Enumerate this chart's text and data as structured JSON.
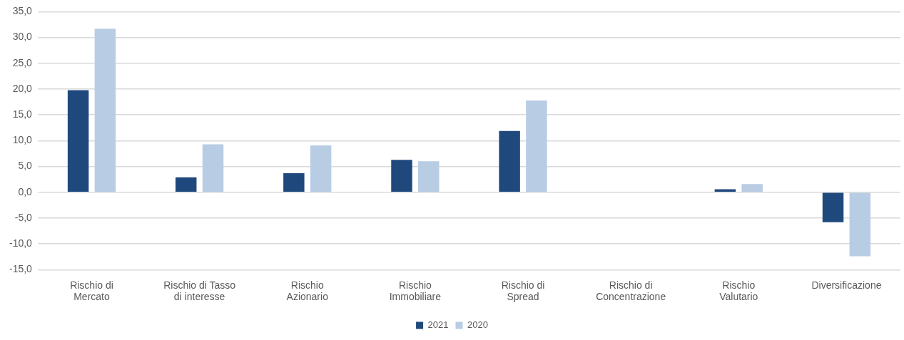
{
  "chart_data": {
    "type": "bar",
    "categories": [
      "Rischio di Mercato",
      "Rischio di Tasso di interesse",
      "Rischio Azionario",
      "Rischio Immobiliare",
      "Rischio di Spread",
      "Rischio di Concentrazione",
      "Rischio Valutario",
      "Diversificazione"
    ],
    "series": [
      {
        "name": "2021",
        "color": "#1f497d",
        "values": [
          19.8,
          2.9,
          3.7,
          6.3,
          11.9,
          0,
          0.6,
          -5.8
        ]
      },
      {
        "name": "2020",
        "color": "#b8cce4",
        "values": [
          31.7,
          9.3,
          9.1,
          6.0,
          17.8,
          0,
          1.6,
          -12.4
        ]
      }
    ],
    "ylim": [
      -15,
      35
    ],
    "yticks": [
      {
        "value": -15,
        "label": "-15,0"
      },
      {
        "value": -10,
        "label": "-10,0"
      },
      {
        "value": -5,
        "label": "-5,0"
      },
      {
        "value": 0,
        "label": "0,0"
      },
      {
        "value": 5,
        "label": "5,0"
      },
      {
        "value": 10,
        "label": "10,0"
      },
      {
        "value": 15,
        "label": "15,0"
      },
      {
        "value": 20,
        "label": "20,0"
      },
      {
        "value": 25,
        "label": "25,0"
      },
      {
        "value": 30,
        "label": "30,0"
      },
      {
        "value": 35,
        "label": "35,0"
      }
    ],
    "grid": "y",
    "legend": "bottom"
  }
}
